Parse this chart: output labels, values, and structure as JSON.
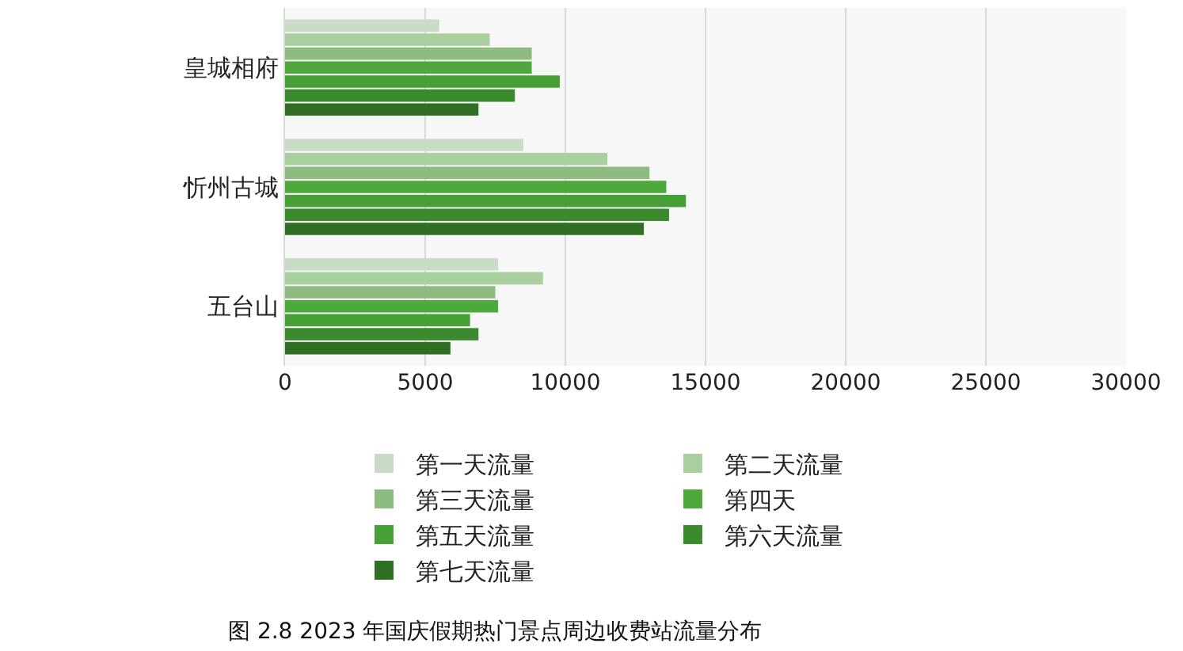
{
  "chart_data": {
    "type": "bar",
    "orientation": "horizontal",
    "categories": [
      "皇城相府",
      "忻州古城",
      "五台山"
    ],
    "series": [
      {
        "name": "第一天流量",
        "color": "#c9dcc5",
        "values": [
          5500,
          8500,
          7600
        ]
      },
      {
        "name": "第二天流量",
        "color": "#a9cf9f",
        "values": [
          7300,
          11500,
          9200
        ]
      },
      {
        "name": "第三天流量",
        "color": "#8dbb80",
        "values": [
          8800,
          13000,
          7500
        ]
      },
      {
        "name": "第四天",
        "color": "#4ea93c",
        "values": [
          8800,
          13600,
          7600
        ]
      },
      {
        "name": "第五天流量",
        "color": "#47a036",
        "values": [
          9800,
          14300,
          6600
        ]
      },
      {
        "name": "第六天流量",
        "color": "#3c8a2e",
        "values": [
          8200,
          13700,
          6900
        ]
      },
      {
        "name": "第七天流量",
        "color": "#2f6f24",
        "values": [
          6900,
          12800,
          5900
        ]
      }
    ],
    "xlim": [
      0,
      30000
    ],
    "xticks": [
      0,
      5000,
      10000,
      15000,
      20000,
      25000,
      30000
    ],
    "grid": "x",
    "legend": "bottom",
    "annotations": [
      "图 2.8 2023 年国庆假期热门景点周边收费站流量分布"
    ]
  }
}
